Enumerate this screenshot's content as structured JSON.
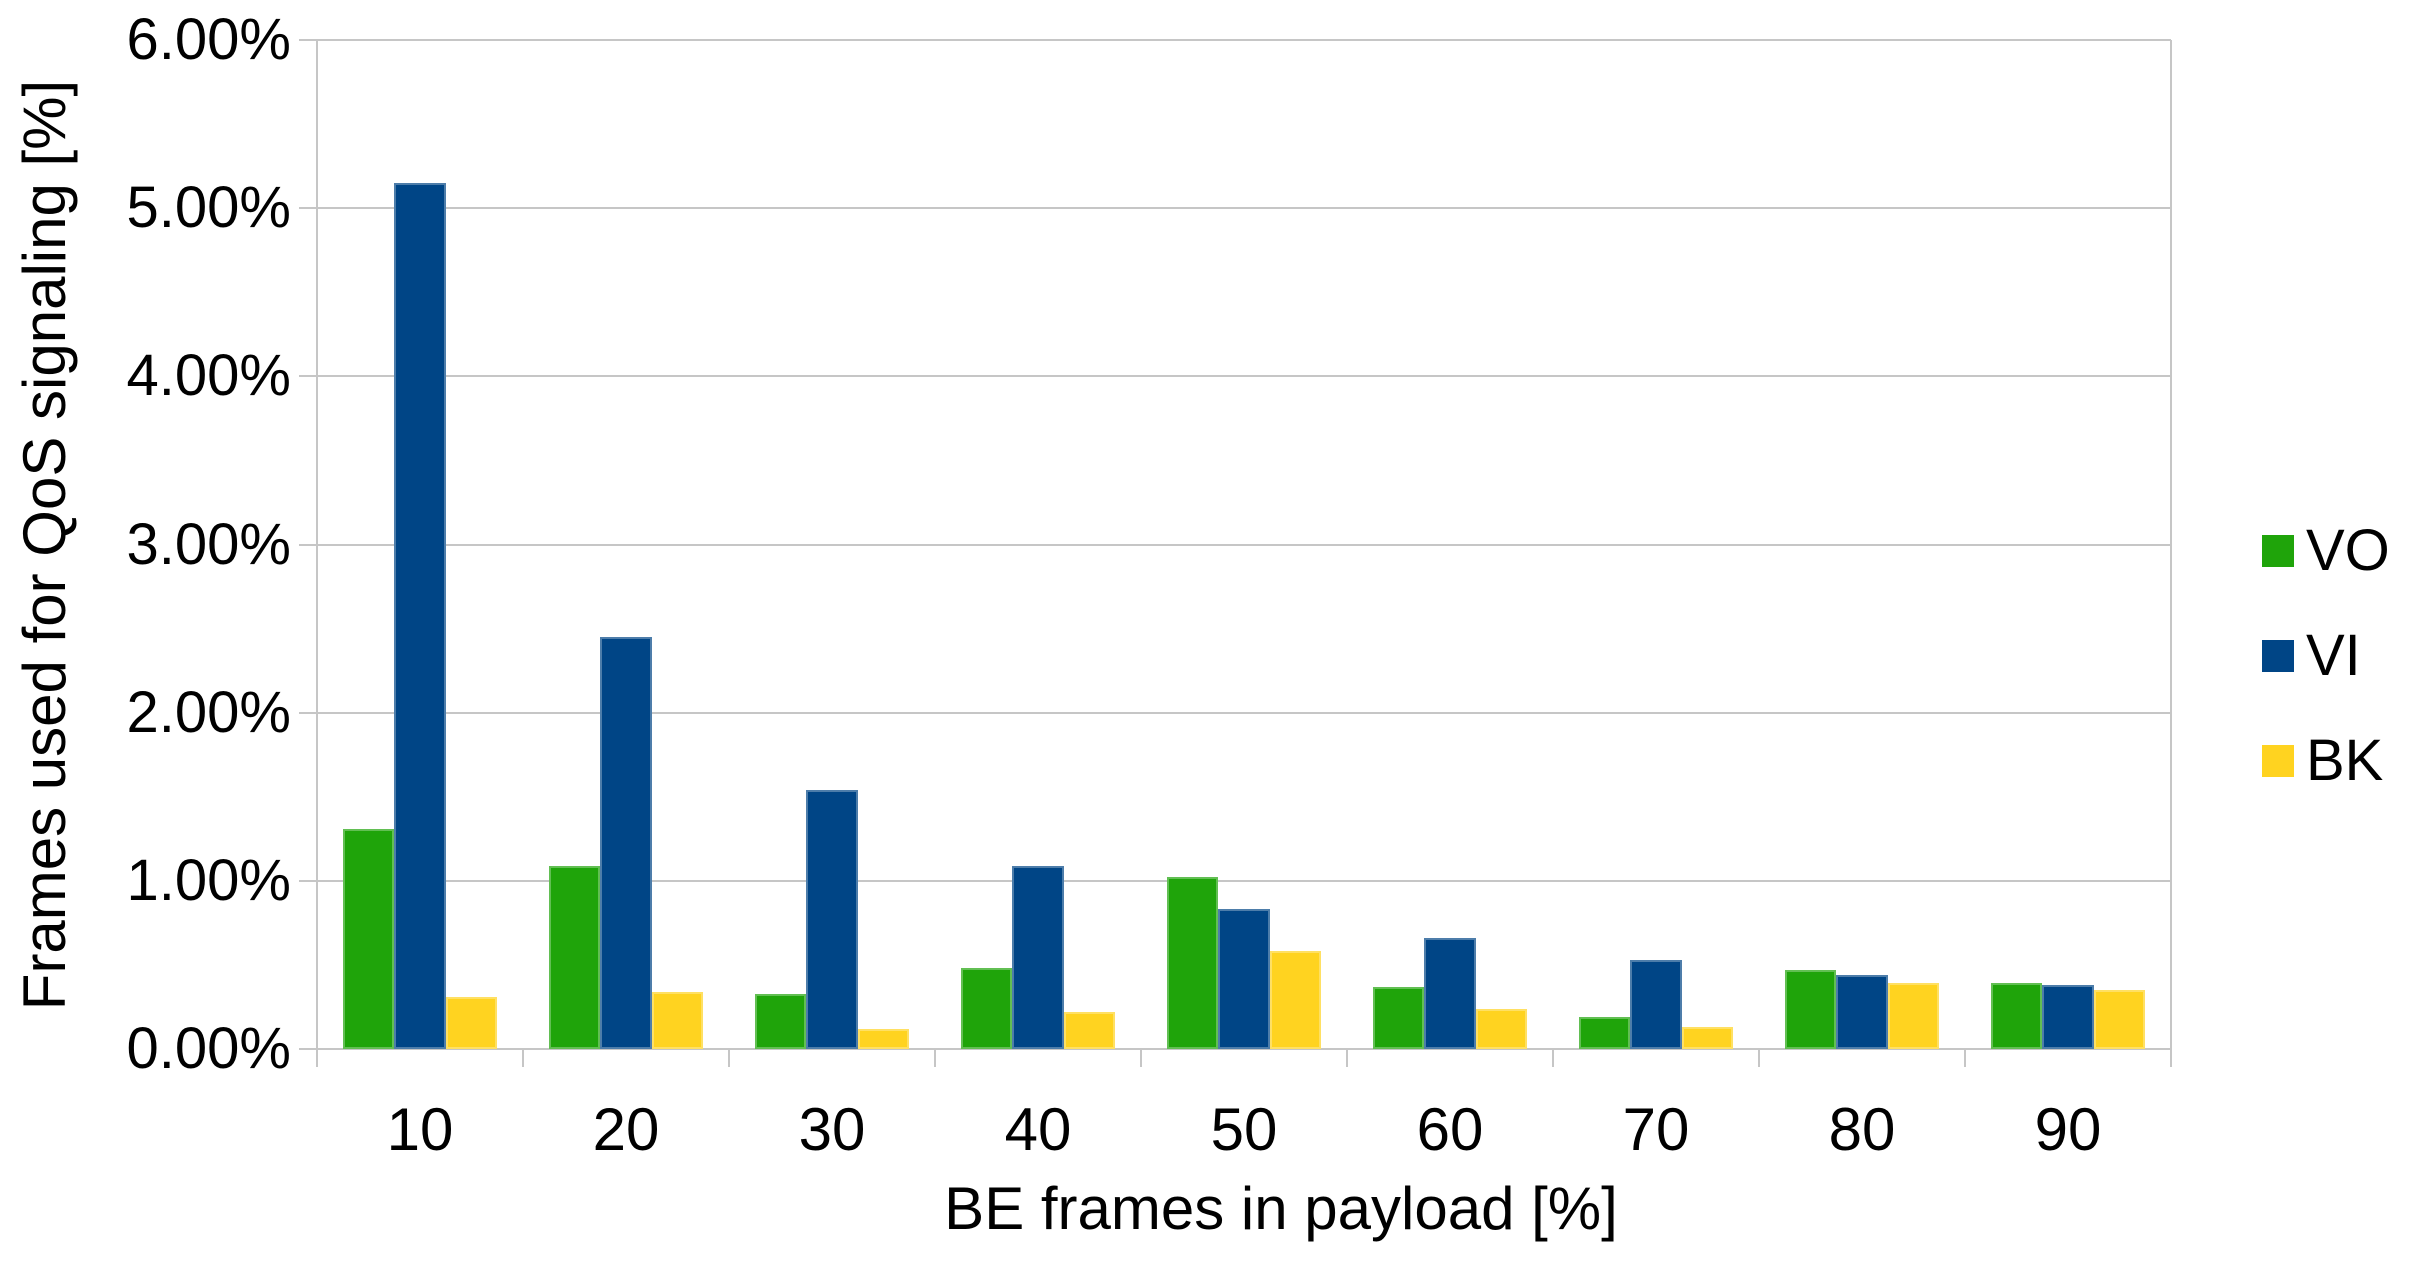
{
  "chart_data": {
    "type": "bar",
    "title": "",
    "xlabel": "BE frames in payload [%]",
    "ylabel": "Frames used for QoS signaling [%]",
    "categories": [
      "10",
      "20",
      "30",
      "40",
      "50",
      "60",
      "70",
      "80",
      "90"
    ],
    "series": [
      {
        "name": "VO",
        "color": "#1FA40A",
        "values": [
          1.31,
          1.09,
          0.33,
          0.48,
          1.02,
          0.37,
          0.19,
          0.47,
          0.39
        ]
      },
      {
        "name": "VI",
        "color": "#004586",
        "values": [
          5.15,
          2.45,
          1.54,
          1.09,
          0.83,
          0.66,
          0.53,
          0.44,
          0.38
        ]
      },
      {
        "name": "BK",
        "color": "#FFD320",
        "values": [
          0.31,
          0.34,
          0.12,
          0.22,
          0.58,
          0.24,
          0.13,
          0.39,
          0.35
        ]
      }
    ],
    "ylim": [
      0,
      6
    ],
    "ytick_step": 1,
    "ytick_labels": [
      "0.00%",
      "1.00%",
      "2.00%",
      "3.00%",
      "4.00%",
      "5.00%",
      "6.00%"
    ],
    "grid": true,
    "grid_color": "#C6C6C6",
    "background_color": "#FFFFFF",
    "text_color": "#000000",
    "legend_position": "right"
  }
}
